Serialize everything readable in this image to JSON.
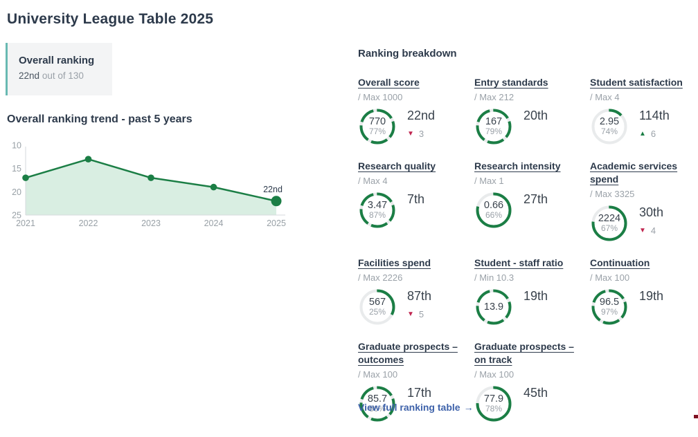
{
  "page": {
    "title": "University League Table 2025"
  },
  "overall_ranking": {
    "label": "Overall ranking",
    "rank": "22nd",
    "suffix": "out of 130"
  },
  "trend": {
    "heading": "Overall ranking trend - past 5 years"
  },
  "chart_data": {
    "type": "area",
    "title": "Overall ranking trend - past 5 years",
    "x": [
      2021,
      2022,
      2023,
      2024,
      2025
    ],
    "values": [
      17,
      13,
      17,
      19,
      22
    ],
    "series_name": "Overall ranking",
    "yticks": [
      10,
      15,
      20,
      25
    ],
    "ylim": [
      10,
      25
    ],
    "y_inverted": true,
    "grid": false,
    "annotation_last_point": "22nd",
    "xlabel": "",
    "ylabel": ""
  },
  "breakdown": {
    "heading": "Ranking breakdown",
    "metrics": [
      {
        "name": "Overall score",
        "max_label": "/ Max 1000",
        "value": "770",
        "percent": "77%",
        "rank": "22nd",
        "change": "3",
        "change_dir": "down",
        "ring_fill": 1
      },
      {
        "name": "Entry standards",
        "max_label": "/ Max 212",
        "value": "167",
        "percent": "79%",
        "rank": "20th",
        "change": "",
        "change_dir": "",
        "ring_fill": 1
      },
      {
        "name": "Student satisfaction",
        "max_label": "/ Max 4",
        "value": "2.95",
        "percent": "74%",
        "rank": "114th",
        "change": "6",
        "change_dir": "up",
        "ring_fill": 0.13
      },
      {
        "name": "Research quality",
        "max_label": "/ Max 4",
        "value": "3.47",
        "percent": "87%",
        "rank": "7th",
        "change": "",
        "change_dir": "",
        "ring_fill": 1
      },
      {
        "name": "Research intensity",
        "max_label": "/ Max 1",
        "value": "0.66",
        "percent": "66%",
        "rank": "27th",
        "change": "",
        "change_dir": "",
        "ring_fill": 0.79
      },
      {
        "name": "Academic services spend",
        "max_label": "/ Max 3325",
        "value": "2224",
        "percent": "67%",
        "rank": "30th",
        "change": "4",
        "change_dir": "down",
        "ring_fill": 0.77
      },
      {
        "name": "Facilities spend",
        "max_label": "/ Max 2226",
        "value": "567",
        "percent": "25%",
        "rank": "87th",
        "change": "5",
        "change_dir": "down",
        "ring_fill": 0.33
      },
      {
        "name": "Student - staff ratio",
        "max_label": "/ Min 10.3",
        "value": "13.9",
        "percent": "",
        "rank": "19th",
        "change": "",
        "change_dir": "",
        "ring_fill": 1
      },
      {
        "name": "Continuation",
        "max_label": "/ Max 100",
        "value": "96.5",
        "percent": "97%",
        "rank": "19th",
        "change": "",
        "change_dir": "",
        "ring_fill": 1
      },
      {
        "name": "Graduate prospects – outcomes",
        "max_label": "/ Max 100",
        "value": "85.7",
        "percent": "86%",
        "rank": "17th",
        "change": "",
        "change_dir": "",
        "ring_fill": 1
      },
      {
        "name": "Graduate prospects – on track",
        "max_label": "/ Max 100",
        "value": "77.9",
        "percent": "78%",
        "rank": "45th",
        "change": "",
        "change_dir": "",
        "ring_fill": 0.76
      }
    ],
    "link": {
      "label": "View full ranking table",
      "arrow": "→"
    }
  },
  "colors": {
    "green": "#1b7e45",
    "area_fill": "#d9eee2",
    "axis": "#d6dadd",
    "down_red": "#c02650",
    "link_blue": "#3e62aa",
    "teal_border": "#68b9b2",
    "dark_text": "#2d3a4b",
    "muted_text": "#9aa1a8"
  }
}
